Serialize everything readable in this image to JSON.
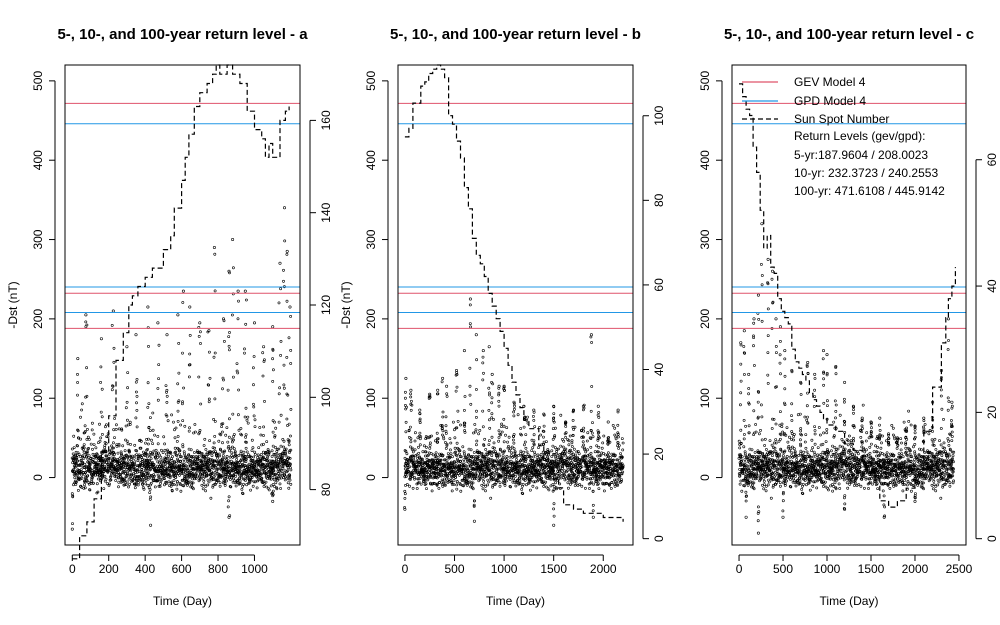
{
  "chart_data": [
    {
      "type": "line",
      "title": "5-, 10-, and 100-year return level - a",
      "xlabel": "Time (Day)",
      "ylabel": "-Dst (nT)",
      "ylabel_right": "",
      "xlim": [
        -40,
        1250
      ],
      "ylim": [
        -85,
        520
      ],
      "ylim_right": [
        68,
        172
      ],
      "x_ticks": [
        0,
        200,
        400,
        600,
        800,
        1000
      ],
      "y_ticks": [
        0,
        100,
        200,
        300,
        400,
        500
      ],
      "y_ticks_right": [
        80,
        100,
        120,
        140,
        160
      ],
      "return_levels": {
        "gev": [
          187.9604,
          232.3723,
          471.6108
        ],
        "gpd": [
          208.0023,
          240.2553,
          445.9142
        ]
      },
      "dst_x_max": 1200,
      "dst_peaks": [
        [
          30,
          150
        ],
        [
          75,
          205
        ],
        [
          160,
          175
        ],
        [
          225,
          210
        ],
        [
          300,
          165
        ],
        [
          350,
          180
        ],
        [
          415,
          215
        ],
        [
          470,
          195
        ],
        [
          520,
          180
        ],
        [
          580,
          205
        ],
        [
          610,
          235
        ],
        [
          645,
          215
        ],
        [
          700,
          195
        ],
        [
          750,
          185
        ],
        [
          780,
          290
        ],
        [
          830,
          200
        ],
        [
          860,
          260
        ],
        [
          880,
          300
        ],
        [
          910,
          235
        ],
        [
          950,
          235
        ],
        [
          1000,
          195
        ],
        [
          1050,
          165
        ],
        [
          1100,
          190
        ],
        [
          1140,
          270
        ],
        [
          1165,
          340
        ],
        [
          1180,
          285
        ],
        [
          1195,
          215
        ]
      ],
      "dst_min": [
        [
          0,
          -65
        ],
        [
          430,
          -60
        ],
        [
          860,
          -50
        ],
        [
          1100,
          -30
        ]
      ],
      "sunspot": [
        [
          0,
          65
        ],
        [
          40,
          70
        ],
        [
          80,
          73
        ],
        [
          120,
          78
        ],
        [
          160,
          88
        ],
        [
          200,
          96
        ],
        [
          240,
          108
        ],
        [
          280,
          114
        ],
        [
          310,
          120
        ],
        [
          330,
          122
        ],
        [
          360,
          124
        ],
        [
          400,
          126
        ],
        [
          440,
          128
        ],
        [
          470,
          128
        ],
        [
          500,
          132
        ],
        [
          540,
          135
        ],
        [
          560,
          141
        ],
        [
          600,
          147
        ],
        [
          620,
          152
        ],
        [
          640,
          157
        ],
        [
          670,
          163
        ],
        [
          700,
          166
        ],
        [
          740,
          168
        ],
        [
          770,
          170
        ],
        [
          790,
          172
        ],
        [
          810,
          170
        ],
        [
          850,
          172
        ],
        [
          880,
          170
        ],
        [
          920,
          168
        ],
        [
          960,
          162
        ],
        [
          1000,
          158
        ],
        [
          1040,
          156
        ],
        [
          1060,
          152
        ],
        [
          1080,
          155
        ],
        [
          1100,
          152
        ],
        [
          1140,
          160
        ],
        [
          1170,
          162
        ],
        [
          1190,
          163
        ]
      ]
    },
    {
      "type": "line",
      "title": "5-, 10-, and 100-year return level - b",
      "xlabel": "Time (Day)",
      "ylabel": "-Dst (nT)",
      "ylabel_right": "",
      "xlim": [
        -70,
        2300
      ],
      "ylim": [
        -85,
        520
      ],
      "ylim_right": [
        -1.5,
        112
      ],
      "x_ticks": [
        0,
        500,
        1000,
        1500,
        2000
      ],
      "y_ticks": [
        0,
        100,
        200,
        300,
        400,
        500
      ],
      "y_ticks_right": [
        0,
        20,
        40,
        60,
        80,
        100
      ],
      "return_levels": {
        "gev": [
          187.9604,
          232.3723,
          471.6108
        ],
        "gpd": [
          208.0023,
          240.2553,
          445.9142
        ]
      },
      "dst_x_max": 2200,
      "dst_peaks": [
        [
          10,
          125
        ],
        [
          60,
          110
        ],
        [
          150,
          85
        ],
        [
          250,
          105
        ],
        [
          330,
          110
        ],
        [
          380,
          125
        ],
        [
          420,
          115
        ],
        [
          520,
          135
        ],
        [
          600,
          160
        ],
        [
          660,
          225
        ],
        [
          720,
          180
        ],
        [
          790,
          160
        ],
        [
          850,
          165
        ],
        [
          880,
          130
        ],
        [
          950,
          115
        ],
        [
          1000,
          115
        ],
        [
          1100,
          95
        ],
        [
          1200,
          90
        ],
        [
          1300,
          85
        ],
        [
          1400,
          80
        ],
        [
          1500,
          90
        ],
        [
          1620,
          70
        ],
        [
          1700,
          85
        ],
        [
          1800,
          90
        ],
        [
          1880,
          180
        ],
        [
          1950,
          90
        ],
        [
          2050,
          70
        ],
        [
          2150,
          85
        ]
      ],
      "dst_min": [
        [
          0,
          -40
        ],
        [
          700,
          -55
        ],
        [
          1500,
          -60
        ],
        [
          1900,
          -50
        ]
      ],
      "sunspot": [
        [
          0,
          95
        ],
        [
          40,
          97
        ],
        [
          80,
          103
        ],
        [
          120,
          103
        ],
        [
          160,
          107
        ],
        [
          200,
          108
        ],
        [
          240,
          110
        ],
        [
          280,
          111
        ],
        [
          320,
          112
        ],
        [
          360,
          111
        ],
        [
          400,
          109
        ],
        [
          440,
          100
        ],
        [
          480,
          98
        ],
        [
          520,
          94
        ],
        [
          560,
          90
        ],
        [
          600,
          83
        ],
        [
          640,
          78
        ],
        [
          680,
          71
        ],
        [
          720,
          67
        ],
        [
          760,
          65
        ],
        [
          800,
          62
        ],
        [
          840,
          58
        ],
        [
          880,
          55
        ],
        [
          920,
          52
        ],
        [
          960,
          49
        ],
        [
          1000,
          45
        ],
        [
          1040,
          41
        ],
        [
          1080,
          37
        ],
        [
          1120,
          34
        ],
        [
          1160,
          31
        ],
        [
          1200,
          28
        ],
        [
          1250,
          26
        ],
        [
          1300,
          26
        ],
        [
          1350,
          22
        ],
        [
          1400,
          19
        ],
        [
          1450,
          17
        ],
        [
          1500,
          14
        ],
        [
          1550,
          12
        ],
        [
          1600,
          8
        ],
        [
          1700,
          7
        ],
        [
          1800,
          6
        ],
        [
          1900,
          6
        ],
        [
          2000,
          5
        ],
        [
          2100,
          5
        ],
        [
          2200,
          4
        ]
      ]
    },
    {
      "type": "line",
      "title": "5-, 10-, and 100-year return level - c",
      "xlabel": "Time (Day)",
      "ylabel": "",
      "ylabel_right": "",
      "xlim": [
        -80,
        2580
      ],
      "ylim": [
        -85,
        520
      ],
      "ylim_right": [
        -1,
        75
      ],
      "x_ticks": [
        0,
        500,
        1000,
        1500,
        2000,
        2500
      ],
      "y_ticks": [
        0,
        100,
        200,
        300,
        400,
        500
      ],
      "y_ticks_right": [
        0,
        20,
        40,
        60
      ],
      "return_levels": {
        "gev": [
          187.9604,
          232.3723,
          471.6108
        ],
        "gpd": [
          208.0023,
          240.2553,
          445.9142
        ]
      },
      "dst_x_max": 2440,
      "dst_peaks": [
        [
          20,
          170
        ],
        [
          60,
          185
        ],
        [
          110,
          130
        ],
        [
          170,
          200
        ],
        [
          220,
          230
        ],
        [
          260,
          320
        ],
        [
          330,
          275
        ],
        [
          380,
          260
        ],
        [
          420,
          200
        ],
        [
          470,
          190
        ],
        [
          520,
          160
        ],
        [
          600,
          135
        ],
        [
          700,
          120
        ],
        [
          780,
          145
        ],
        [
          860,
          130
        ],
        [
          960,
          160
        ],
        [
          1000,
          155
        ],
        [
          1100,
          140
        ],
        [
          1200,
          120
        ],
        [
          1300,
          90
        ],
        [
          1400,
          75
        ],
        [
          1500,
          70
        ],
        [
          1600,
          75
        ],
        [
          1700,
          55
        ],
        [
          1800,
          50
        ],
        [
          1900,
          60
        ],
        [
          2000,
          65
        ],
        [
          2100,
          75
        ],
        [
          2200,
          95
        ],
        [
          2300,
          135
        ],
        [
          2380,
          200
        ],
        [
          2420,
          95
        ]
      ],
      "dst_min": [
        [
          80,
          -50
        ],
        [
          220,
          -70
        ],
        [
          500,
          -50
        ],
        [
          1200,
          -40
        ],
        [
          1650,
          -50
        ],
        [
          2000,
          -30
        ]
      ],
      "sunspot": [
        [
          0,
          72
        ],
        [
          40,
          70
        ],
        [
          80,
          68
        ],
        [
          120,
          67
        ],
        [
          160,
          62
        ],
        [
          200,
          58
        ],
        [
          240,
          52
        ],
        [
          280,
          46
        ],
        [
          320,
          48
        ],
        [
          360,
          43
        ],
        [
          400,
          42
        ],
        [
          440,
          38
        ],
        [
          480,
          36
        ],
        [
          520,
          35
        ],
        [
          560,
          34
        ],
        [
          600,
          30
        ],
        [
          640,
          28
        ],
        [
          680,
          27
        ],
        [
          720,
          26
        ],
        [
          760,
          25
        ],
        [
          800,
          23
        ],
        [
          840,
          22
        ],
        [
          880,
          21
        ],
        [
          920,
          20
        ],
        [
          960,
          19
        ],
        [
          1000,
          18
        ],
        [
          1100,
          17
        ],
        [
          1200,
          15
        ],
        [
          1300,
          14
        ],
        [
          1400,
          12
        ],
        [
          1500,
          10
        ],
        [
          1600,
          6
        ],
        [
          1700,
          5
        ],
        [
          1800,
          6
        ],
        [
          1900,
          8
        ],
        [
          2000,
          11
        ],
        [
          2100,
          17
        ],
        [
          2200,
          24
        ],
        [
          2300,
          31
        ],
        [
          2350,
          35
        ],
        [
          2380,
          38
        ],
        [
          2420,
          40
        ],
        [
          2460,
          43
        ]
      ]
    }
  ],
  "legend": {
    "entries": [
      {
        "label": "GEV Model 4",
        "color": "#df536b",
        "style": "solid"
      },
      {
        "label": "GPD Model 4",
        "color": "#2297e6",
        "style": "solid"
      },
      {
        "label": "Sun Spot Number",
        "color": "#000000",
        "style": "dashed"
      }
    ],
    "note_title": "Return Levels  (gev/gpd):",
    "note_lines": [
      "5-yr:187.9604 / 208.0023",
      "10-yr: 232.3723 / 240.2553",
      "100-yr: 471.6108 / 445.9142"
    ]
  },
  "colors": {
    "gev": "#df536b",
    "gpd": "#2297e6",
    "points": "#000000"
  }
}
